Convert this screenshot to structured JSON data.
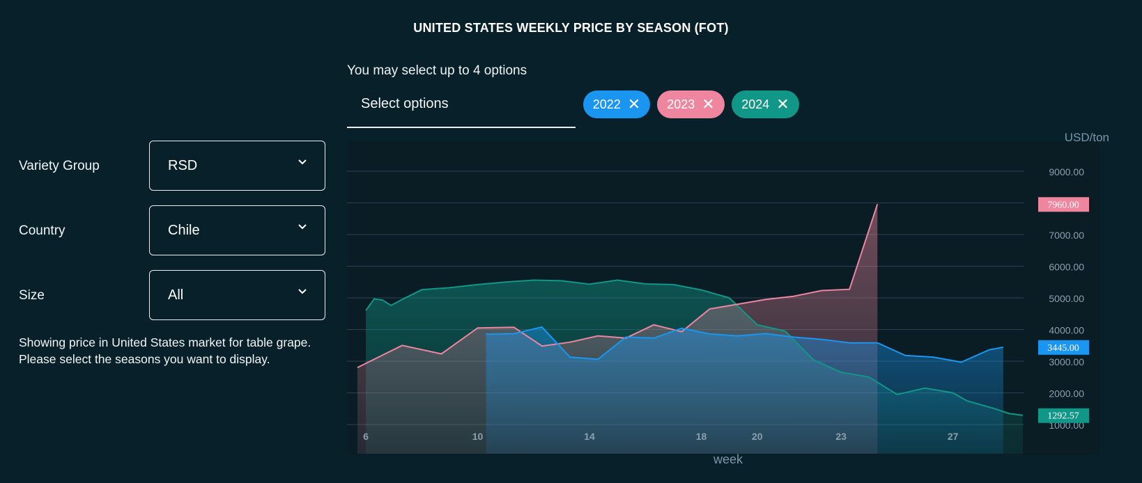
{
  "title": "UNITED STATES WEEKLY PRICE BY SEASON (FOT)",
  "season_select": {
    "hint": "You may select up to 4 options",
    "placeholder": "Select options",
    "tags": [
      {
        "label": "2022",
        "color": "#1a96f0"
      },
      {
        "label": "2023",
        "color": "#ee86a0"
      },
      {
        "label": "2024",
        "color": "#119787"
      }
    ],
    "remove_icon": "close-icon"
  },
  "filters": [
    {
      "label": "Variety Group",
      "value": "RSD"
    },
    {
      "label": "Country",
      "value": "Chile"
    },
    {
      "label": "Size",
      "value": "All"
    }
  ],
  "description": "Showing price in United States market for table grape. Please select the seasons you want to display.",
  "colors": {
    "background": "#08202a",
    "plot_background": "#0a1d24",
    "s2022": "#1a96f0",
    "s2023": "#ee86a0",
    "s2024": "#119787"
  },
  "chart_data": {
    "type": "area",
    "xlabel": "week",
    "ylabel": "USD/ton",
    "ylim": [
      0,
      10000
    ],
    "xlim": [
      5.5,
      30
    ],
    "x_ticks": [
      {
        "x": 6,
        "label": "6"
      },
      {
        "x": 10,
        "label": "10"
      },
      {
        "x": 14,
        "label": "14"
      },
      {
        "x": 18,
        "label": "18"
      },
      {
        "x": 20,
        "label": "20"
      },
      {
        "x": 23,
        "label": "23"
      },
      {
        "x": 27,
        "label": "27"
      }
    ],
    "y_ticks": [
      {
        "value": 1000,
        "label": "1000.00"
      },
      {
        "value": 2000,
        "label": "2000.00"
      },
      {
        "value": 3000,
        "label": "3000.00"
      },
      {
        "value": 4000,
        "label": "4000.00"
      },
      {
        "value": 5000,
        "label": "5000.00"
      },
      {
        "value": 6000,
        "label": "6000.00"
      },
      {
        "value": 7000,
        "label": "7000.00"
      },
      {
        "value": 8000,
        "label": "8000.00"
      },
      {
        "value": 9000,
        "label": "9000.00"
      }
    ],
    "grid": true,
    "series": [
      {
        "name": "2024",
        "color": "#119787",
        "last_label": "1292.57",
        "x": [
          6,
          6.3,
          6.6,
          6.9,
          7.3,
          8,
          9,
          10,
          11,
          12,
          13,
          14,
          15,
          16,
          17,
          18,
          19,
          20,
          21,
          22,
          23,
          24,
          25,
          26,
          27,
          27.5,
          28.5,
          29,
          29.5
        ],
        "values": [
          4600,
          4970,
          4930,
          4760,
          4950,
          5260,
          5320,
          5420,
          5500,
          5560,
          5540,
          5430,
          5560,
          5440,
          5420,
          5250,
          5000,
          4150,
          3950,
          3050,
          2650,
          2500,
          1950,
          2150,
          2000,
          1750,
          1500,
          1350,
          1292.57
        ]
      },
      {
        "name": "2023",
        "color": "#ee86a0",
        "last_label": "7960.00",
        "x": [
          5.7,
          7.3,
          8.7,
          10,
          11.3,
          12.3,
          13.3,
          14.3,
          15.3,
          16.3,
          17.3,
          18.3,
          19.3,
          20.3,
          21.3,
          22.3,
          23.3,
          24.3
        ],
        "values": [
          2800,
          3500,
          3230,
          4050,
          4070,
          3480,
          3600,
          3800,
          3730,
          4150,
          3930,
          4650,
          4800,
          4950,
          5050,
          5230,
          5270,
          7960
        ]
      },
      {
        "name": "2022",
        "color": "#1a96f0",
        "last_label": "3445.00",
        "x": [
          10.3,
          11.3,
          12.3,
          13.3,
          14.3,
          15.3,
          16.3,
          17.3,
          18.3,
          19.3,
          20.3,
          21.3,
          22.3,
          23.3,
          24.3,
          25.3,
          26.3,
          27.3,
          28.3,
          28.8
        ],
        "values": [
          3850,
          3870,
          4080,
          3130,
          3060,
          3760,
          3730,
          4040,
          3860,
          3800,
          3870,
          3760,
          3690,
          3580,
          3580,
          3180,
          3130,
          2970,
          3360,
          3445
        ]
      }
    ]
  }
}
